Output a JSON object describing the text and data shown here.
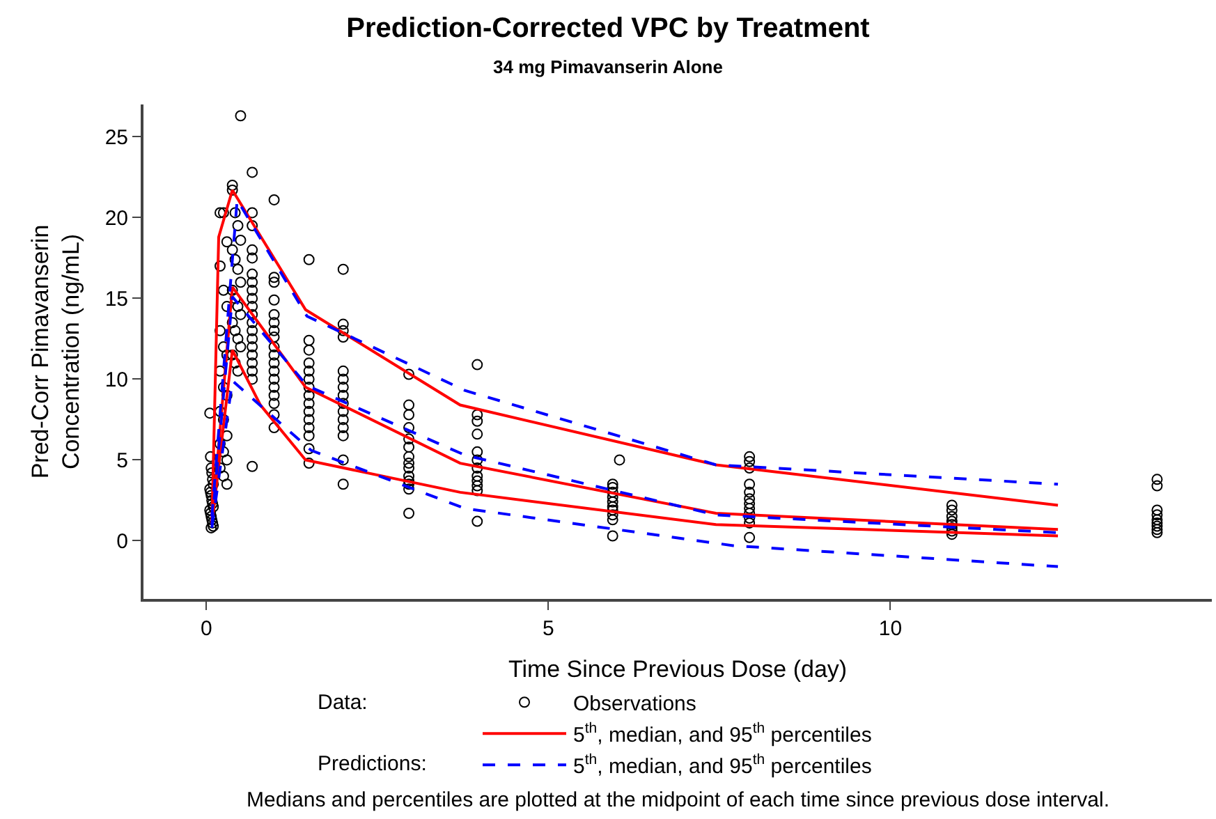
{
  "chart_data": {
    "type": "scatter",
    "title": "Prediction-Corrected VPC by Treatment",
    "subtitle": "34 mg Pimavanserin Alone",
    "xlabel": "Time Since Previous Dose (day)",
    "ylabel": "Pred-Corr Pimavanserin\nConcentration (ng/mL)",
    "xlim": [
      -0.92,
      14.7
    ],
    "xticks": [
      0,
      5,
      10
    ],
    "ylim": [
      -3.6,
      27
    ],
    "yticks": [
      0,
      5,
      10,
      15,
      20,
      25
    ],
    "legend": "bottom",
    "annotations": [
      "Data:",
      "Predictions:",
      "Medians and percentiles are plotted at the midpoint of each time since previous dose interval."
    ],
    "series": [
      {
        "name": "Observations",
        "marker": "circle",
        "color": "#000000",
        "x": [
          0.05,
          0.06,
          0.07,
          0.08,
          0.09,
          0.1,
          0.05,
          0.06,
          0.07,
          0.08,
          0.09,
          0.1,
          0.05,
          0.06,
          0.07,
          0.08,
          0.09,
          0.1,
          0.07,
          0.2,
          0.25,
          0.3,
          0.2,
          0.25,
          0.3,
          0.2,
          0.25,
          0.3,
          0.2,
          0.25,
          0.3,
          0.2,
          0.25,
          0.3,
          0.2,
          0.25,
          0.3,
          0.2,
          0.25,
          0.3,
          0.38,
          0.5,
          0.38,
          0.42,
          0.46,
          0.5,
          0.38,
          0.42,
          0.46,
          0.5,
          0.38,
          0.42,
          0.46,
          0.5,
          0.38,
          0.42,
          0.46,
          0.5,
          0.38,
          0.42,
          0.46,
          0.67,
          0.67,
          0.67,
          0.67,
          0.67,
          0.67,
          0.67,
          0.67,
          0.67,
          0.67,
          0.67,
          0.67,
          0.67,
          0.67,
          0.67,
          0.67,
          0.67,
          0.67,
          0.67,
          0.67,
          0.99,
          0.99,
          0.99,
          0.99,
          0.99,
          0.99,
          0.99,
          0.99,
          0.99,
          0.99,
          0.99,
          0.99,
          0.99,
          0.99,
          0.99,
          0.99,
          0.99,
          0.99,
          1.5,
          1.5,
          1.5,
          1.5,
          1.5,
          1.5,
          1.5,
          1.5,
          1.5,
          1.5,
          1.5,
          1.5,
          1.5,
          1.5,
          1.5,
          2.0,
          2.0,
          2.0,
          2.0,
          2.0,
          2.0,
          2.0,
          2.0,
          2.0,
          2.0,
          2.0,
          2.0,
          2.0,
          2.0,
          2.0,
          2.96,
          2.96,
          2.96,
          2.96,
          2.96,
          2.96,
          2.96,
          2.96,
          2.96,
          2.96,
          2.96,
          2.96,
          2.96,
          2.96,
          3.96,
          3.96,
          3.96,
          3.96,
          3.96,
          3.96,
          3.96,
          3.96,
          3.96,
          3.96,
          3.96,
          3.96,
          6.04,
          5.94,
          5.94,
          5.94,
          5.94,
          5.94,
          5.94,
          5.94,
          5.94,
          5.94,
          5.94,
          7.94,
          7.94,
          7.94,
          7.94,
          7.94,
          7.94,
          7.94,
          7.94,
          7.94,
          7.94,
          7.94,
          7.94,
          10.9,
          10.9,
          10.9,
          10.9,
          10.9,
          10.9,
          10.9,
          10.9,
          13.9,
          13.9,
          13.9,
          13.9,
          13.9,
          13.9,
          13.9,
          13.9,
          13.9
        ],
        "values": [
          7.9,
          5.2,
          4.5,
          4.2,
          3.8,
          3.5,
          3.2,
          3.0,
          2.8,
          2.5,
          2.3,
          2.1,
          1.9,
          1.7,
          1.5,
          1.3,
          1.1,
          0.9,
          0.8,
          20.3,
          20.3,
          18.5,
          17.0,
          15.5,
          14.5,
          13.0,
          12.0,
          11.5,
          10.5,
          9.5,
          9.0,
          8.0,
          7.5,
          6.5,
          6.0,
          5.5,
          5.0,
          4.5,
          4.0,
          3.5,
          22.0,
          26.3,
          21.7,
          20.3,
          19.5,
          18.6,
          18.0,
          17.4,
          16.8,
          16.0,
          15.5,
          15.0,
          14.5,
          14.0,
          13.5,
          13.0,
          12.5,
          12.0,
          11.5,
          11.0,
          10.5,
          22.8,
          20.3,
          19.5,
          18.0,
          17.5,
          16.5,
          16.0,
          15.5,
          15.0,
          14.5,
          14.0,
          13.5,
          13.0,
          12.5,
          12.0,
          11.5,
          11.0,
          10.5,
          10.0,
          4.6,
          21.1,
          16.3,
          16.0,
          14.9,
          14.0,
          13.5,
          13.0,
          12.6,
          12.0,
          11.5,
          11.0,
          10.5,
          10.0,
          9.5,
          9.0,
          8.5,
          7.8,
          7.0,
          17.4,
          12.4,
          11.8,
          11.0,
          10.5,
          10.0,
          9.5,
          9.0,
          8.5,
          8.0,
          7.5,
          7.0,
          6.5,
          5.7,
          4.8,
          16.8,
          13.4,
          13.0,
          12.6,
          10.5,
          10.0,
          9.5,
          9.0,
          8.5,
          8.0,
          7.5,
          7.0,
          6.5,
          5.0,
          3.5,
          10.3,
          8.4,
          7.8,
          7.0,
          6.3,
          5.8,
          5.2,
          4.8,
          4.5,
          4.0,
          3.7,
          3.5,
          3.2,
          1.7,
          10.9,
          7.8,
          7.4,
          6.6,
          5.5,
          5.0,
          4.5,
          4.0,
          3.7,
          3.4,
          3.1,
          1.2,
          5.0,
          3.5,
          3.3,
          3.0,
          2.7,
          2.4,
          2.1,
          1.9,
          1.6,
          1.3,
          0.3,
          5.2,
          4.9,
          4.5,
          3.5,
          3.0,
          2.6,
          2.3,
          2.0,
          1.7,
          1.4,
          1.1,
          0.2,
          2.2,
          1.9,
          1.5,
          1.2,
          1.0,
          0.8,
          0.6,
          0.4,
          3.8,
          3.4,
          1.9,
          1.6,
          1.3,
          1.1,
          0.9,
          0.7,
          0.5
        ]
      },
      {
        "name": "5$^{th}$, median, and 95$^{th}$ percentiles",
        "type": "line",
        "marker": "none",
        "line_style": "solid",
        "color": "#ff0000",
        "x": [
          0.08,
          0.18,
          0.38,
          1.45,
          3.71,
          7.45,
          12.45
        ],
        "values": [
          1.0,
          18.8,
          21.7,
          14.3,
          8.4,
          4.7,
          2.2
        ]
      },
      {
        "type": "line",
        "marker": "none",
        "line_style": "solid",
        "color": "#ff0000",
        "x": [
          0.08,
          0.38,
          1.45,
          3.71,
          7.45,
          12.45
        ],
        "values": [
          1.0,
          15.7,
          9.5,
          4.8,
          1.7,
          0.7
        ]
      },
      {
        "type": "line",
        "marker": "none",
        "line_style": "solid",
        "color": "#ff0000",
        "x": [
          0.08,
          0.38,
          0.79,
          1.45,
          3.71,
          7.45,
          12.45
        ],
        "values": [
          1.0,
          11.8,
          8.4,
          5.0,
          3.0,
          1.0,
          0.3
        ]
      },
      {
        "name": "5$^{th}$, median, and 95$^{th}$ percentiles",
        "type": "line",
        "marker": "none",
        "line_style": "dashed",
        "color": "#0000ff",
        "x": [
          0.08,
          0.45,
          1.47,
          3.78,
          7.45,
          12.45
        ],
        "values": [
          1.5,
          21.1,
          13.9,
          9.3,
          4.7,
          3.5
        ]
      },
      {
        "type": "line",
        "marker": "none",
        "line_style": "dashed",
        "color": "#0000ff",
        "x": [
          0.08,
          0.38,
          1.47,
          3.78,
          7.45,
          12.45
        ],
        "values": [
          1.0,
          15.1,
          9.6,
          5.3,
          1.6,
          0.5
        ]
      },
      {
        "type": "line",
        "marker": "none",
        "line_style": "dashed",
        "color": "#0000ff",
        "x": [
          0.08,
          0.38,
          1.53,
          3.78,
          7.7,
          12.45
        ],
        "values": [
          0.8,
          9.9,
          5.6,
          2.0,
          -0.3,
          -1.6
        ]
      }
    ]
  }
}
